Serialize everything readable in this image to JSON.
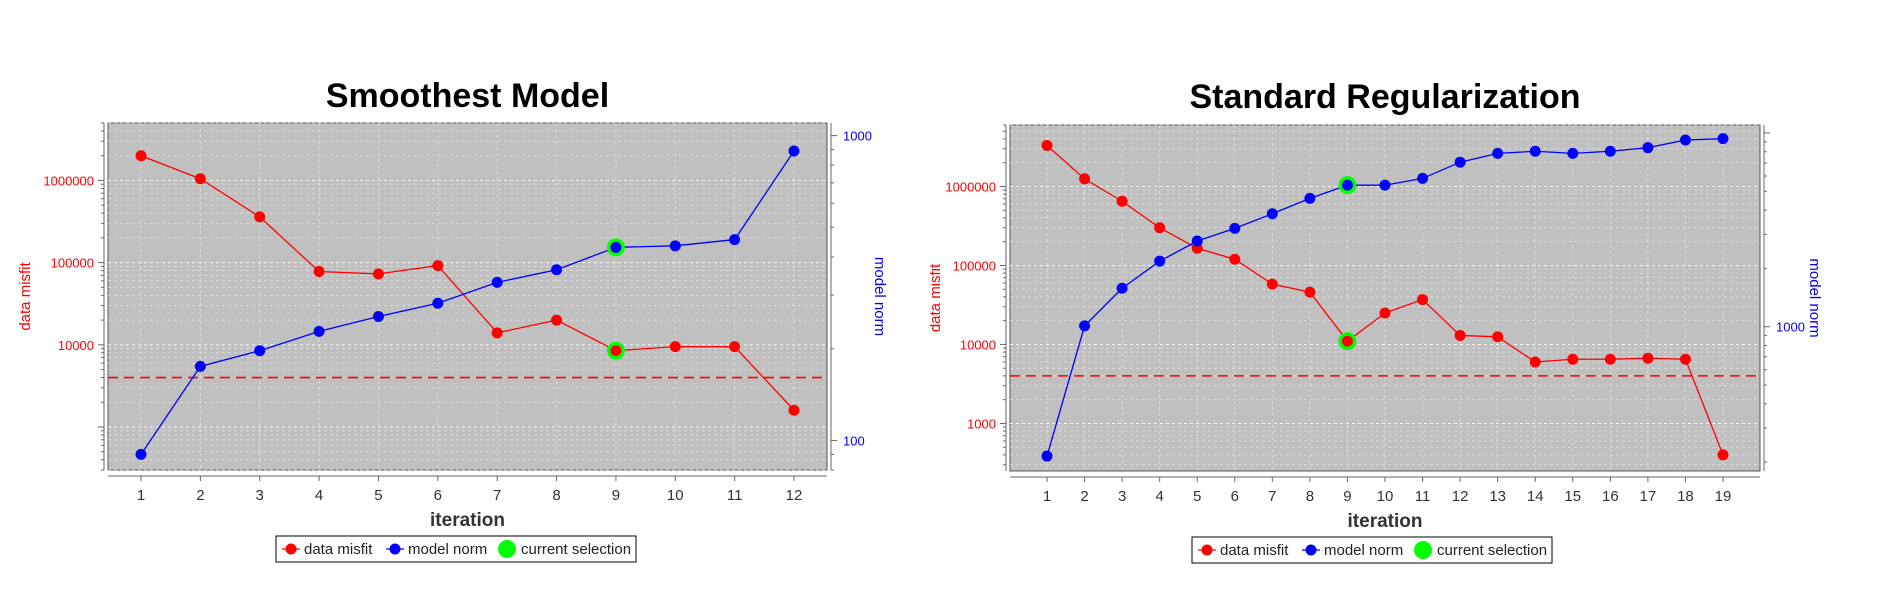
{
  "colors": {
    "misfit": "#ff0000",
    "norm": "#0000ff",
    "selection": "#00ff00",
    "plot_bg": "#c0c0c0",
    "target_line": "#ff0000"
  },
  "legend": {
    "misfit": "data misfit",
    "norm": "model norm",
    "selection": "current selection"
  },
  "chart_data": [
    {
      "type": "line",
      "title": "Smoothest Model",
      "xlabel": "iteration",
      "ylabel_left": "data misfit",
      "ylabel_right": "model norm",
      "x": [
        1,
        2,
        3,
        4,
        5,
        6,
        7,
        8,
        9,
        10,
        11,
        12
      ],
      "xticks": [
        "1",
        "2",
        "3",
        "4",
        "5",
        "6",
        "7",
        "8",
        "9",
        "10",
        "11",
        "12"
      ],
      "y_left_scale": "log",
      "y_left_range": [
        300,
        5000000
      ],
      "y_left_ticks": [
        10000,
        100000,
        1000000
      ],
      "y_left_tick_labels": [
        "10000",
        "100000",
        "1000000"
      ],
      "y_right_scale": "log",
      "y_right_range": [
        80,
        1100
      ],
      "y_right_ticks": [
        100,
        1000
      ],
      "y_right_tick_labels": [
        "100",
        "1000"
      ],
      "target_misfit": 4000,
      "grid": true,
      "legend_position": "bottom",
      "series": [
        {
          "name": "data misfit",
          "axis": "left",
          "values": [
            2000000,
            1050000,
            360000,
            78000,
            73000,
            92000,
            14000,
            20000,
            8500,
            9500,
            9500,
            1600
          ]
        },
        {
          "name": "model norm",
          "axis": "right",
          "values": [
            90,
            175,
            197,
            228,
            255,
            282,
            330,
            363,
            430,
            435,
            456,
            890
          ]
        }
      ],
      "selected_iteration": 9
    },
    {
      "type": "line",
      "title": "Standard Regularization",
      "xlabel": "iteration",
      "ylabel_left": "data misfit",
      "ylabel_right": "model norm",
      "x": [
        1,
        2,
        3,
        4,
        5,
        6,
        7,
        8,
        9,
        10,
        11,
        12,
        13,
        14,
        15,
        16,
        17,
        18,
        19
      ],
      "xticks": [
        "1",
        "2",
        "3",
        "4",
        "5",
        "6",
        "7",
        "8",
        "9",
        "10",
        "11",
        "12",
        "13",
        "14",
        "15",
        "16",
        "17",
        "18",
        "19"
      ],
      "y_left_scale": "log",
      "y_left_range": [
        250,
        6000000
      ],
      "y_left_ticks": [
        1000,
        10000,
        100000,
        1000000
      ],
      "y_left_tick_labels": [
        "1000",
        "10000",
        "100000",
        "1000000"
      ],
      "y_right_scale": "log",
      "y_right_range": [
        180,
        11000
      ],
      "y_right_ticks": [
        1000
      ],
      "y_right_tick_labels": [
        "1000"
      ],
      "target_misfit": 4000,
      "grid": true,
      "legend_position": "bottom",
      "series": [
        {
          "name": "data misfit",
          "axis": "left",
          "values": [
            3300000,
            1250000,
            650000,
            300000,
            165000,
            120000,
            58000,
            46000,
            11000,
            25000,
            37000,
            13000,
            12500,
            6000,
            6500,
            6500,
            6700,
            6500,
            400
          ]
        },
        {
          "name": "model norm",
          "axis": "right",
          "values": [
            215,
            1010,
            1580,
            2180,
            2770,
            3220,
            3830,
            4600,
            5380,
            5380,
            5830,
            7070,
            7850,
            8050,
            7850,
            8050,
            8400,
            9200,
            9350
          ]
        }
      ],
      "selected_iteration": 9
    }
  ]
}
